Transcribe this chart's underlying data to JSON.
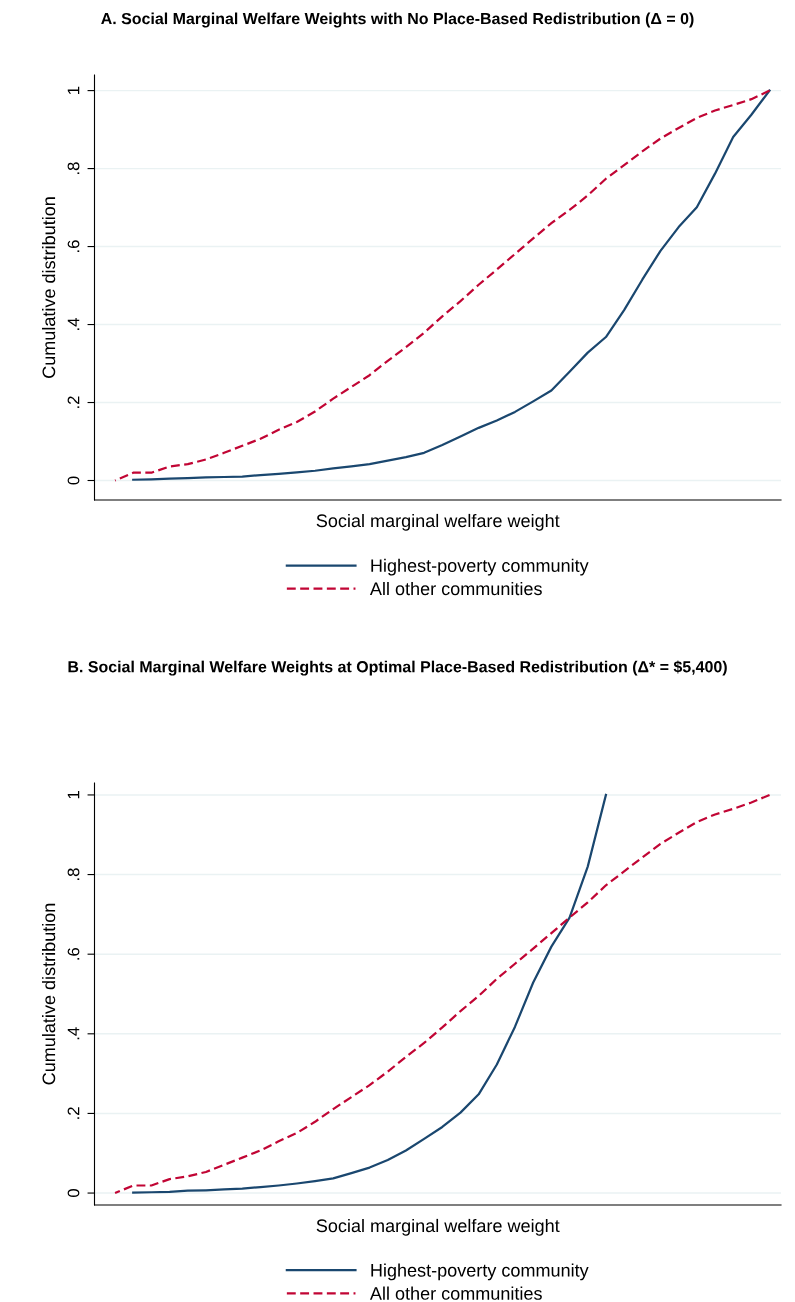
{
  "chart_data": [
    {
      "type": "line",
      "title": "A. Social Marginal Welfare Weights with No Place-Based Redistribution (Δ = 0)",
      "xlabel": "Social marginal welfare weight",
      "ylabel": "Cumulative distribution",
      "categories": [
        null,
        null,
        null,
        null,
        null,
        null,
        null,
        null,
        null,
        null,
        null,
        null,
        null,
        null,
        null,
        null,
        null,
        null,
        null,
        null,
        null,
        null,
        null,
        null,
        null,
        null,
        null,
        null,
        null,
        null,
        null,
        null,
        null,
        null,
        null,
        null,
        null
      ],
      "series": [
        {
          "name": "Highest-poverty community",
          "color": "#1a476f",
          "line_style": "solid",
          "values": [
            null,
            0.002,
            0.003,
            0.005,
            0.006,
            0.008,
            0.009,
            0.01,
            0.014,
            0.017,
            0.021,
            0.025,
            0.031,
            0.036,
            0.042,
            0.051,
            0.06,
            0.071,
            0.091,
            0.113,
            0.135,
            0.154,
            0.176,
            0.203,
            0.231,
            0.279,
            0.328,
            0.368,
            0.437,
            0.515,
            0.589,
            0.65,
            0.701,
            0.787,
            0.881,
            0.938,
            1.0
          ]
        },
        {
          "name": "All other communities",
          "color": "#c10534",
          "line_style": "dashed",
          "values": [
            0,
            0.02,
            0.02,
            0.036,
            0.042,
            0.054,
            0.071,
            0.089,
            0.107,
            0.13,
            0.15,
            0.177,
            0.21,
            0.24,
            0.27,
            0.307,
            0.342,
            0.379,
            0.421,
            0.46,
            0.502,
            0.541,
            0.581,
            0.621,
            0.66,
            0.694,
            0.731,
            0.774,
            0.809,
            0.844,
            0.877,
            0.904,
            0.93,
            0.949,
            0.963,
            0.978,
            1.0
          ]
        }
      ],
      "ylim": [
        -0.05,
        1.04
      ],
      "yticks": [
        {
          "value": 0,
          "label": "0"
        },
        {
          "value": 0.2,
          "label": ".2"
        },
        {
          "value": 0.4,
          "label": ".4"
        },
        {
          "value": 0.6,
          "label": ".6"
        },
        {
          "value": 0.8,
          "label": ".8"
        },
        {
          "value": 1,
          "label": "1"
        }
      ],
      "grid": "y",
      "legend": "bottom",
      "tick_labels": "y"
    },
    {
      "type": "line",
      "title": "B. Social Marginal Welfare Weights at Optimal Place-Based Redistribution (Δ* = $5,400)",
      "xlabel": "Social marginal welfare weight",
      "ylabel": "Cumulative distribution",
      "categories": [
        null,
        null,
        null,
        null,
        null,
        null,
        null,
        null,
        null,
        null,
        null,
        null,
        null,
        null,
        null,
        null,
        null,
        null,
        null,
        null,
        null,
        null,
        null,
        null,
        null,
        null,
        null,
        null,
        null,
        null,
        null,
        null,
        null,
        null,
        null,
        null,
        null
      ],
      "series": [
        {
          "name": "Highest-poverty community",
          "color": "#1a476f",
          "line_style": "solid",
          "values": [
            null,
            0.001,
            0.002,
            0.003,
            0.006,
            0.007,
            0.009,
            0.011,
            0.015,
            0.019,
            0.024,
            0.03,
            0.037,
            0.05,
            0.064,
            0.083,
            0.107,
            0.136,
            0.166,
            0.202,
            0.248,
            0.323,
            0.418,
            0.529,
            0.619,
            0.692,
            0.82,
            1.0,
            null,
            null,
            null,
            null,
            null,
            null,
            null,
            null,
            null
          ]
        },
        {
          "name": "All other communities",
          "color": "#c10534",
          "line_style": "dashed",
          "values": [
            0,
            0.019,
            0.019,
            0.035,
            0.042,
            0.053,
            0.071,
            0.089,
            0.107,
            0.13,
            0.151,
            0.179,
            0.211,
            0.241,
            0.271,
            0.305,
            0.342,
            0.377,
            0.416,
            0.457,
            0.495,
            0.538,
            0.576,
            0.614,
            0.653,
            0.692,
            0.73,
            0.773,
            0.808,
            0.843,
            0.877,
            0.905,
            0.932,
            0.951,
            0.965,
            0.981,
            1.0
          ]
        }
      ],
      "ylim": [
        -0.03,
        1.03
      ],
      "yticks": [
        {
          "value": 0,
          "label": "0"
        },
        {
          "value": 0.2,
          "label": ".2"
        },
        {
          "value": 0.4,
          "label": ".4"
        },
        {
          "value": 0.6,
          "label": ".6"
        },
        {
          "value": 0.8,
          "label": ".8"
        },
        {
          "value": 1,
          "label": "1"
        }
      ],
      "grid": "y",
      "legend": "bottom",
      "tick_labels": "y"
    }
  ]
}
